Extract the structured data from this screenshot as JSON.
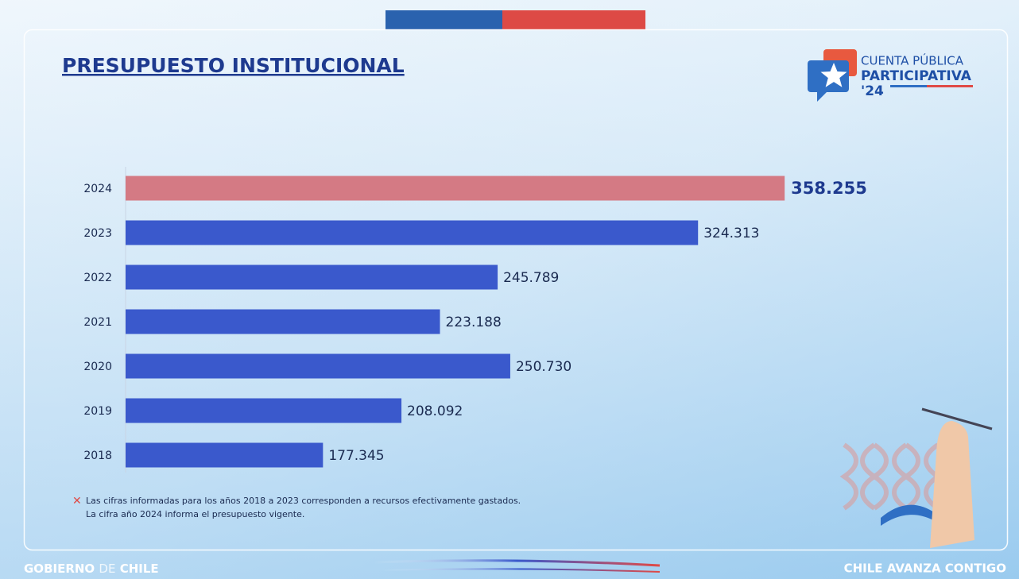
{
  "chart_data": {
    "type": "hbar",
    "title": "PRESUPUESTO INSTITUCIONAL",
    "categories": [
      "2024",
      "2023",
      "2022",
      "2021",
      "2020",
      "2019",
      "2018"
    ],
    "values": [
      358255,
      324313,
      245789,
      223188,
      250730,
      208092,
      177345
    ],
    "value_labels": [
      "358.255",
      "324.313",
      "245.789",
      "223.188",
      "250.730",
      "208.092",
      "177.345"
    ],
    "colors": [
      "#d47a84",
      "#3a59cc",
      "#3a59cc",
      "#3a59cc",
      "#3a59cc",
      "#3a59cc",
      "#3a59cc"
    ],
    "xlim": [
      100000,
      380000
    ],
    "footnote": [
      "Las cifras informadas para los años 2018 a 2023 corresponden a recursos efectivamente gastados.",
      "La cifra año 2024 informa el presupuesto vigente."
    ]
  },
  "branding": {
    "logo": [
      "CUENTA PÚBLICA",
      "PARTICIPATIVA",
      "'24"
    ],
    "footer_left": [
      "GOBIERNO",
      "DE",
      "CHILE"
    ],
    "footer_right": "CHILE AVANZA CONTIGO"
  }
}
